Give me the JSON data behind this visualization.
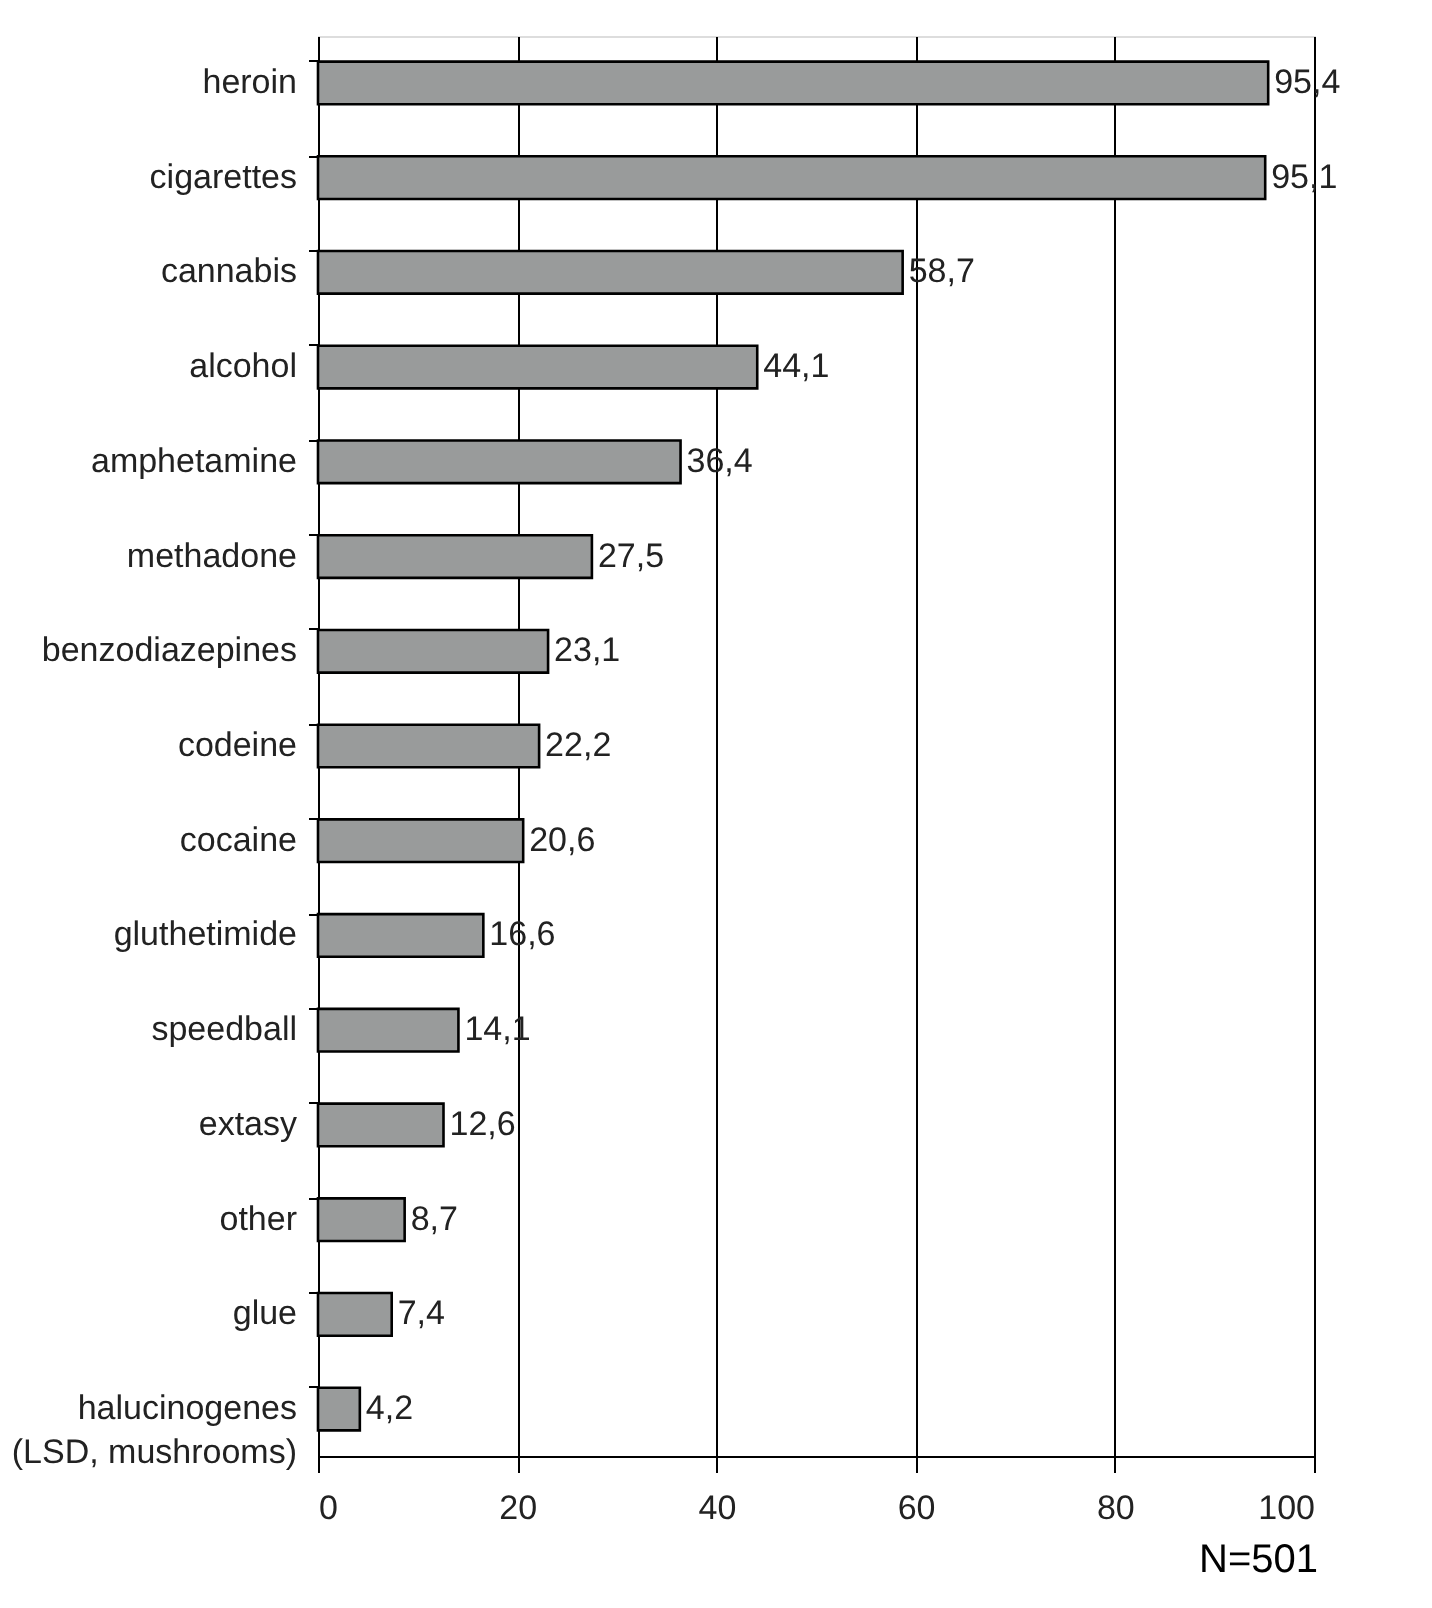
{
  "chart_data": {
    "type": "bar",
    "orientation": "horizontal",
    "categories": [
      "heroin",
      "cigarettes",
      "cannabis",
      "alcohol",
      "amphetamine",
      "methadone",
      "benzodiazepines",
      "codeine",
      "cocaine",
      "gluthetimide",
      "speedball",
      "extasy",
      "other",
      "glue",
      "halucinogenes\n(LSD, mushrooms)"
    ],
    "values": [
      95.4,
      95.1,
      58.7,
      44.1,
      36.4,
      27.5,
      23.1,
      22.2,
      20.6,
      16.6,
      14.1,
      12.6,
      8.7,
      7.4,
      4.2
    ],
    "value_labels": [
      "95,4",
      "95,1",
      "58,7",
      "44,1",
      "36,4",
      "27,5",
      "23,1",
      "22,2",
      "20,6",
      "16,6",
      "14,1",
      "12,6",
      "8,7",
      "7,4",
      "4,2"
    ],
    "color": "#999b9b",
    "xlim": [
      0,
      100
    ],
    "xticks": [
      0,
      20,
      40,
      60,
      80,
      100
    ],
    "grid": "x",
    "annotations": [
      "N=501"
    ]
  }
}
